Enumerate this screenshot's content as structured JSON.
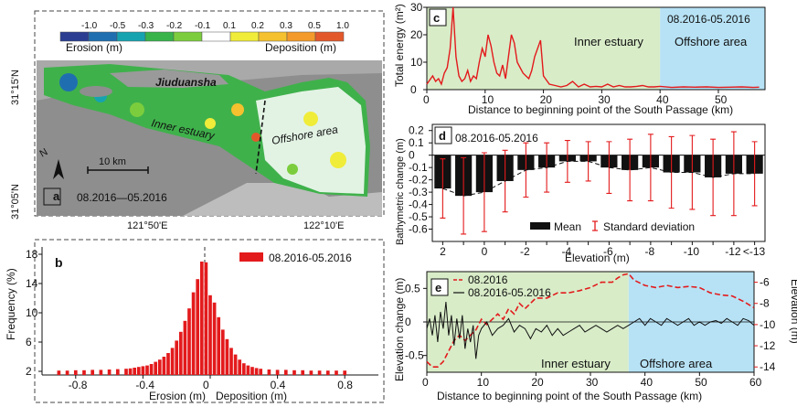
{
  "panel_labels": {
    "a": "a",
    "b": "b",
    "c": "c",
    "d": "d",
    "e": "e"
  },
  "map": {
    "legend_ticks": [
      "-1.0",
      "-0.5",
      "-0.3",
      "-0.2",
      "-0.1",
      "0.1",
      "0.2",
      "0.3",
      "0.5",
      "1.0"
    ],
    "legend_colors": [
      "#2a3d91",
      "#1f6fb0",
      "#16a3b0",
      "#37b34a",
      "#7ccd3d",
      "#ffffff",
      "#f0ec3a",
      "#f5c12e",
      "#f39a2a",
      "#e3582b"
    ],
    "erosion_label": "Erosion (m)",
    "deposition_label": "Deposition (m)",
    "place_jiuduansha": "Jiuduansha",
    "region_inner": "Inner estuary",
    "region_offshore": "Offshore area",
    "scale_label": "10 km",
    "north_label": "N",
    "date_label": "08.2016—05.2016",
    "lat_labels": [
      "31°15'N",
      "31°05'N"
    ],
    "lon_labels": [
      "121°50'E",
      "122°10'E"
    ]
  },
  "chart_data": [
    {
      "id": "b",
      "type": "bar",
      "title": "",
      "xlabel_left": "Erosion (m)",
      "xlabel_right": "Deposition (m)",
      "ylabel": "Frequency (%)",
      "legend": "08.2016-05.2016",
      "color": "#e31a1c",
      "xlim": [
        -1.0,
        1.0
      ],
      "ylim": [
        1.5,
        19
      ],
      "xticks": [
        -0.8,
        -0.4,
        0,
        0.4,
        0.8
      ],
      "xtick_labels": [
        "-0.8",
        "-0.4",
        "0",
        "0.4",
        "0.8"
      ],
      "yticks": [
        2,
        6,
        10,
        14,
        18
      ],
      "ytick_labels": [
        "2",
        "6",
        "10",
        "14",
        "18"
      ],
      "bin_width": 0.025,
      "x": [
        -0.9,
        -0.85,
        -0.8,
        -0.75,
        -0.7,
        -0.65,
        -0.6,
        -0.55,
        -0.5,
        -0.475,
        -0.45,
        -0.425,
        -0.4,
        -0.375,
        -0.35,
        -0.325,
        -0.3,
        -0.275,
        -0.25,
        -0.225,
        -0.2,
        -0.175,
        -0.15,
        -0.125,
        -0.1,
        -0.075,
        -0.05,
        -0.025,
        0,
        0.025,
        0.05,
        0.075,
        0.1,
        0.125,
        0.15,
        0.175,
        0.2,
        0.225,
        0.25,
        0.275,
        0.3,
        0.35,
        0.4,
        0.45,
        0.5,
        0.55,
        0.6,
        0.65,
        0.7,
        0.75,
        0.8
      ],
      "values": [
        2.1,
        2.1,
        2.15,
        2.15,
        2.2,
        2.2,
        2.25,
        2.3,
        2.35,
        2.4,
        2.5,
        2.6,
        2.7,
        2.8,
        3.0,
        3.3,
        3.6,
        4.0,
        4.5,
        5.2,
        6.2,
        7.4,
        8.9,
        10.6,
        12.8,
        14.6,
        17.0,
        16.9,
        12.4,
        11.4,
        9.4,
        7.7,
        6.4,
        5.2,
        4.3,
        3.6,
        3.1,
        2.8,
        2.6,
        2.45,
        2.35,
        2.25,
        2.2,
        2.2,
        2.15,
        2.15,
        2.1,
        2.1,
        2.1,
        2.1,
        2.1
      ]
    },
    {
      "id": "c",
      "type": "line",
      "title": "08.2016-05.2016",
      "xlabel": "Distance to beginning point of the South Passage (km)",
      "ylabel": "Total energy (m²)",
      "xlim": [
        0,
        58
      ],
      "ylim": [
        0,
        30
      ],
      "xticks": [
        0,
        10,
        20,
        30,
        40,
        50
      ],
      "xtick_labels": [
        "0",
        "10",
        "20",
        "30",
        "40",
        "50"
      ],
      "yticks": [
        0,
        10,
        20,
        30
      ],
      "ytick_labels": [
        "0",
        "10",
        "20",
        "30"
      ],
      "regions": [
        {
          "name": "Inner estuary",
          "from": 0,
          "to": 40,
          "color": "#d8ecc8"
        },
        {
          "name": "Offshore area",
          "from": 40,
          "to": 58,
          "color": "#b7e2f5"
        }
      ],
      "series": [
        {
          "name": "Total energy",
          "color": "#e31a1c",
          "x": [
            0,
            1,
            1.5,
            2,
            2.5,
            3,
            3.5,
            4,
            4.5,
            5,
            5.5,
            6,
            6.5,
            7,
            7.5,
            8,
            8.5,
            9,
            9.5,
            10,
            10.5,
            11,
            11.5,
            12,
            12.5,
            13,
            13.5,
            14,
            14.5,
            15,
            15.5,
            16,
            16.5,
            17,
            17.5,
            18,
            18.5,
            19,
            19.5,
            20,
            21,
            22,
            23,
            24,
            25,
            26,
            27,
            28,
            29,
            30,
            31,
            32,
            33,
            34,
            35,
            36,
            37,
            38,
            39,
            40,
            42,
            44,
            46,
            48,
            50,
            52,
            54,
            56,
            57
          ],
          "values": [
            2,
            5,
            3,
            4,
            2,
            6,
            8,
            15,
            30,
            12,
            5,
            3,
            4,
            7,
            3,
            5,
            4,
            10,
            15,
            12,
            20,
            16,
            10,
            6,
            5,
            9,
            4,
            12,
            20,
            17,
            10,
            8,
            6,
            5,
            4,
            7,
            12,
            15,
            18,
            5,
            2,
            1.5,
            1,
            1.5,
            3,
            1,
            2,
            1,
            1.2,
            1,
            2,
            1,
            1.5,
            1,
            1,
            1.2,
            1.5,
            1,
            1,
            1.2,
            0.8,
            1,
            0.9,
            1,
            0.8,
            0.9,
            1,
            0.8,
            0.9
          ]
        }
      ]
    },
    {
      "id": "d",
      "type": "bar",
      "title": "08.2016-05.2016",
      "xlabel": "Elevation (m)",
      "ylabel": "Bathymetric change (m)",
      "legend_mean": "Mean",
      "legend_std": "Standard deviation",
      "ylim": [
        -0.7,
        0.25
      ],
      "yticks": [
        0.2,
        0.1,
        0,
        -0.1,
        -0.2,
        -0.3,
        -0.4,
        -0.5,
        -0.6
      ],
      "ytick_labels": [
        "0.2",
        "0.1",
        "0",
        "-0.1",
        "-0.2",
        "-0.3",
        "-0.4",
        "-0.5",
        "-0.6"
      ],
      "categories": [
        "2",
        "1",
        "0",
        "-1",
        "-2",
        "-3",
        "-4",
        "-5",
        "-6",
        "-7",
        "-8",
        "-9",
        "-10",
        "-11",
        "-12",
        "-13"
      ],
      "tick_labels": [
        "2",
        "",
        "0",
        "",
        "-2",
        "",
        "-4",
        "",
        "-6",
        "",
        "-8",
        "",
        "-10",
        "",
        "-12",
        "<-13"
      ],
      "mean": [
        -0.27,
        -0.33,
        -0.3,
        -0.21,
        -0.12,
        -0.1,
        -0.05,
        -0.05,
        -0.1,
        -0.12,
        -0.1,
        -0.14,
        -0.14,
        -0.18,
        -0.15,
        -0.15
      ],
      "std": [
        0.24,
        0.31,
        0.32,
        0.25,
        0.22,
        0.2,
        0.17,
        0.16,
        0.21,
        0.25,
        0.27,
        0.29,
        0.3,
        0.31,
        0.34,
        0.26
      ],
      "bar_color": "#111111",
      "err_color": "#e31a1c"
    },
    {
      "id": "e",
      "type": "line",
      "xlabel": "Distance to beginning point of the South Passage (km)",
      "ylabel_left": "Elevation change (m)",
      "ylabel_right": "Elevation (m)",
      "xlim": [
        0,
        60
      ],
      "ylim_left": [
        -0.75,
        0.75
      ],
      "ylim_right": [
        -14.5,
        -5
      ],
      "xticks": [
        0,
        10,
        20,
        30,
        40,
        50,
        60
      ],
      "xtick_labels": [
        "0",
        "10",
        "20",
        "30",
        "40",
        "50",
        "60"
      ],
      "yticks_left": [
        0.5,
        0,
        -0.5
      ],
      "ytick_labels_left": [
        "0.5",
        "0",
        "-0.5"
      ],
      "yticks_right": [
        -6,
        -8,
        -10,
        -12,
        -14
      ],
      "ytick_labels_right": [
        "-6",
        "-8",
        "-10",
        "-12",
        "-14"
      ],
      "regions": [
        {
          "name": "Inner estuary",
          "from": 0,
          "to": 37,
          "color": "#d8ecc8"
        },
        {
          "name": "Offshore area",
          "from": 37,
          "to": 60,
          "color": "#b7e2f5"
        }
      ],
      "series": [
        {
          "name": "08.2016",
          "axis": "right",
          "style": "dashed",
          "color": "#e31a1c",
          "x": [
            0,
            1,
            2,
            3,
            4,
            5,
            6,
            7,
            8,
            9,
            10,
            11,
            12,
            13,
            14,
            15,
            16,
            17,
            18,
            20,
            22,
            24,
            26,
            28,
            30,
            32,
            34,
            35,
            36,
            37,
            38,
            40,
            42,
            44,
            46,
            48,
            50,
            52,
            54,
            56,
            58,
            60
          ],
          "values": [
            -13.5,
            -14,
            -14,
            -13.5,
            -12.5,
            -11.5,
            -11,
            -11.5,
            -11,
            -10.5,
            -9.5,
            -10,
            -9.5,
            -9,
            -9.5,
            -8.5,
            -9,
            -8,
            -8.5,
            -7.5,
            -7.5,
            -7,
            -7,
            -6.8,
            -6.5,
            -6,
            -6,
            -5.6,
            -5.3,
            -5.2,
            -5.8,
            -6.3,
            -6.5,
            -6.3,
            -6.5,
            -6.4,
            -6.5,
            -7,
            -7.2,
            -7.3,
            -7.8,
            -8.4
          ]
        },
        {
          "name": "08.2016-05.2016",
          "axis": "left",
          "style": "solid",
          "color": "#111111",
          "x": [
            0,
            0.5,
            1,
            1.5,
            2,
            2.5,
            3,
            3.5,
            4,
            4.5,
            5,
            5.5,
            6,
            6.5,
            7,
            7.5,
            8,
            8.5,
            9,
            9.5,
            10,
            11,
            12,
            13,
            14,
            15,
            16,
            17,
            18,
            19,
            20,
            21,
            22,
            23,
            24,
            25,
            26,
            27,
            28,
            29,
            30,
            31,
            32,
            33,
            34,
            35,
            36,
            37,
            38,
            39,
            40,
            41,
            42,
            43,
            44,
            45,
            46,
            47,
            48,
            49,
            50,
            51,
            52,
            53,
            54,
            55,
            56,
            57,
            58,
            59,
            60
          ],
          "values": [
            -0.1,
            0.05,
            -0.2,
            0.1,
            -0.3,
            0.15,
            -0.1,
            0.3,
            -0.2,
            0.1,
            -0.35,
            0.05,
            -0.25,
            0.1,
            -0.4,
            -0.1,
            -0.3,
            -0.05,
            -0.55,
            -0.2,
            -0.1,
            0.0,
            -0.2,
            -0.1,
            -0.05,
            0.05,
            -0.15,
            -0.05,
            -0.1,
            -0.25,
            -0.1,
            -0.15,
            -0.05,
            -0.2,
            -0.1,
            -0.2,
            -0.15,
            -0.1,
            -0.05,
            -0.15,
            -0.1,
            -0.05,
            -0.1,
            -0.15,
            -0.1,
            -0.05,
            -0.1,
            -0.05,
            0.0,
            0.05,
            -0.05,
            0.05,
            0.0,
            -0.05,
            0.05,
            0.0,
            -0.05,
            0.0,
            0.05,
            -0.05,
            0.0,
            -0.05,
            0.0,
            0.02,
            -0.02,
            0.05,
            0.0,
            -0.05,
            0.05,
            0.02,
            -0.05
          ]
        }
      ],
      "hline_left": 0
    }
  ]
}
